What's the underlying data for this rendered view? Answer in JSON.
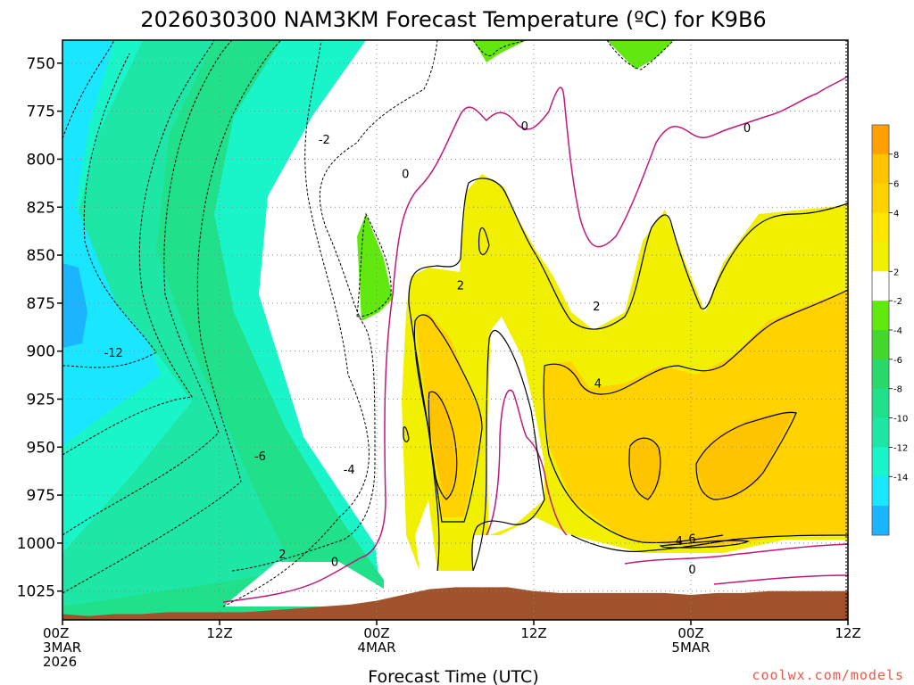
{
  "chart_data": {
    "type": "contour",
    "title": "2026030300 NAM3KM Forecast Temperature (ºC) for K9B6",
    "xlabel": "Forecast Time (UTC)",
    "ylabel": "",
    "y_axis": {
      "unit": "hPa",
      "inverted": true,
      "range": [
        1040,
        738
      ],
      "ticks": [
        750,
        775,
        800,
        825,
        850,
        875,
        900,
        925,
        950,
        975,
        1000,
        1025
      ]
    },
    "x_axis": {
      "unit": "forecast hour",
      "range": [
        0,
        60
      ],
      "ticks": [
        {
          "hour": 0,
          "lines": [
            "00Z",
            "3MAR",
            "2026"
          ]
        },
        {
          "hour": 12,
          "lines": [
            "12Z"
          ]
        },
        {
          "hour": 24,
          "lines": [
            "00Z",
            "4MAR"
          ]
        },
        {
          "hour": 36,
          "lines": [
            "12Z"
          ]
        },
        {
          "hour": 48,
          "lines": [
            "00Z",
            "5MAR"
          ]
        },
        {
          "hour": 60,
          "lines": [
            "12Z"
          ]
        }
      ]
    },
    "grid": true,
    "colorbar": {
      "placement": "right",
      "levels": [
        -14,
        -12,
        -10,
        -8,
        -6,
        -4,
        -2,
        2,
        4,
        6,
        8
      ],
      "labels": [
        "-14",
        "-12",
        "-10",
        "-8",
        "-6",
        "-4",
        "-2",
        "2",
        "4",
        "6",
        "8"
      ],
      "colors": [
        "#1ab4ff",
        "#1ae6ff",
        "#19f5c8",
        "#1ee6a6",
        "#21e08a",
        "#2ad96b",
        "#46d630",
        "#61e80f",
        "#ffffff",
        "#f0f000",
        "#ffe600",
        "#ffd200",
        "#ffc400",
        "#ffa000"
      ]
    },
    "contour_labels": [
      {
        "hour": 3.9,
        "p": 901,
        "text": "-12"
      },
      {
        "hour": 15.1,
        "p": 955,
        "text": "-6"
      },
      {
        "hour": 21.9,
        "p": 962,
        "text": "-4"
      },
      {
        "hour": 20.0,
        "p": 790,
        "text": "-2"
      },
      {
        "hour": 16.8,
        "p": 1006,
        "text": "2"
      },
      {
        "hour": 20.8,
        "p": 1010,
        "text": "0"
      },
      {
        "hour": 26.2,
        "p": 808,
        "text": "0"
      },
      {
        "hour": 30.4,
        "p": 866,
        "text": "2"
      },
      {
        "hour": 35.3,
        "p": 783,
        "text": "0"
      },
      {
        "hour": 40.8,
        "p": 877,
        "text": "2"
      },
      {
        "hour": 40.9,
        "p": 917,
        "text": "4"
      },
      {
        "hour": 47.1,
        "p": 999,
        "text": "4"
      },
      {
        "hour": 48.1,
        "p": 998,
        "text": "6"
      },
      {
        "hour": 48.1,
        "p": 1014,
        "text": "0"
      },
      {
        "hour": 52.3,
        "p": 784,
        "text": "0"
      }
    ],
    "surface_pressure": {
      "hours": [
        0,
        2,
        4,
        6,
        8,
        10,
        12,
        14,
        16,
        18,
        20,
        22,
        24,
        26,
        28,
        30,
        32,
        34,
        36,
        38,
        40,
        42,
        44,
        46,
        48,
        50,
        52,
        54,
        56,
        58,
        60
      ],
      "hpa": [
        1037,
        1038,
        1037,
        1037,
        1036,
        1036,
        1036,
        1036,
        1035,
        1034,
        1033,
        1032,
        1030,
        1027,
        1024,
        1023,
        1023,
        1023,
        1025,
        1026,
        1026,
        1026,
        1026,
        1026,
        1027,
        1026,
        1026,
        1025,
        1025,
        1025,
        1025
      ]
    }
  },
  "credit": "coolwx.com/models"
}
